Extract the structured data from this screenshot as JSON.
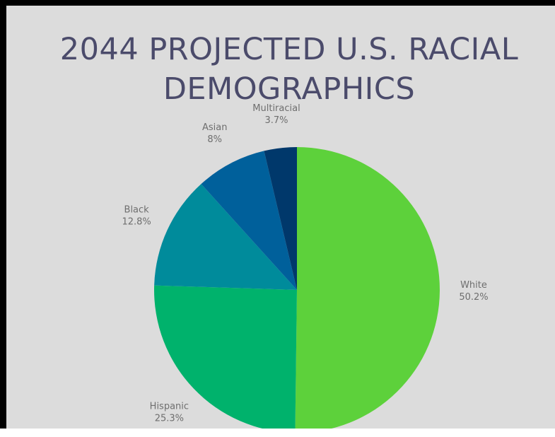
{
  "chart_data": {
    "type": "pie",
    "title": "2044 PROJECTED U.S. RACIAL DEMOGRAPHICS",
    "categories": [
      "White",
      "Hispanic",
      "Black",
      "Asian",
      "Multiracial"
    ],
    "values": [
      50.2,
      25.3,
      12.8,
      8,
      3.7
    ],
    "value_labels": [
      "50.2%",
      "25.3%",
      "12.8%",
      "8%",
      "3.7%"
    ],
    "colors": [
      "#5dd13b",
      "#00b26c",
      "#008b9b",
      "#00609b",
      "#00386b"
    ]
  }
}
